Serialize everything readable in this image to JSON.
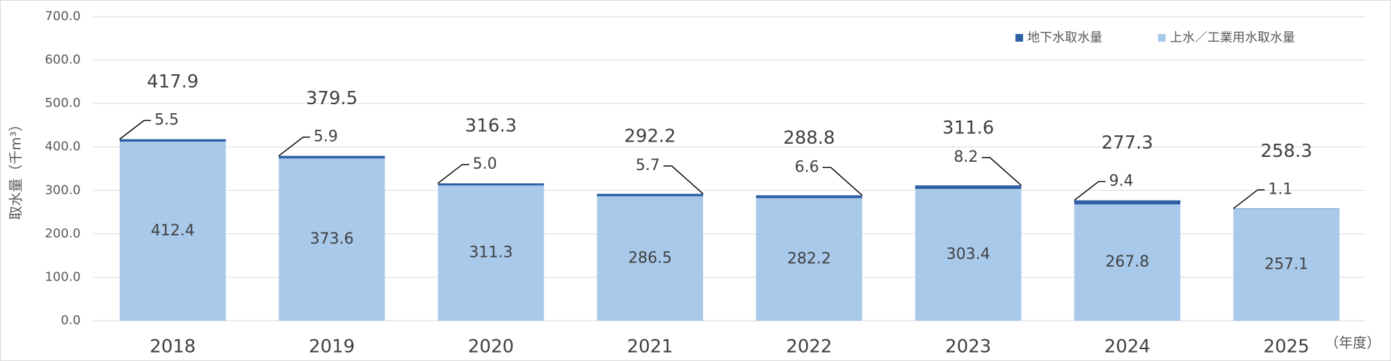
{
  "chart_data": {
    "type": "stacked-bar",
    "y_label": "取水量（千m³）",
    "x_unit": "（年度）",
    "categories": [
      "2018",
      "2019",
      "2020",
      "2021",
      "2022",
      "2023",
      "2024",
      "2025"
    ],
    "series": [
      {
        "name": "上水／工業用水取水量",
        "color": "#a9c9ea",
        "values": [
          412.4,
          373.6,
          311.3,
          286.5,
          282.2,
          303.4,
          267.8,
          257.1
        ]
      },
      {
        "name": "地下水取水量",
        "color": "#2e5fa3",
        "values": [
          5.5,
          5.9,
          5.0,
          5.7,
          6.6,
          8.2,
          9.4,
          1.1
        ],
        "value_labels": [
          "5.5",
          "5.9",
          "5.0",
          "5.7",
          "6.6",
          "8.2",
          "9.4",
          "1.1"
        ]
      }
    ],
    "totals": [
      417.9,
      379.5,
      316.3,
      292.2,
      288.8,
      311.6,
      277.3,
      258.3
    ],
    "ylim": [
      0,
      700
    ],
    "yticks": [
      {
        "value": 0,
        "label": "0.0"
      },
      {
        "value": 100,
        "label": "100.0"
      },
      {
        "value": 200,
        "label": "200.0"
      },
      {
        "value": 300,
        "label": "300.0"
      },
      {
        "value": 400,
        "label": "400.0"
      },
      {
        "value": 500,
        "label": "500.0"
      },
      {
        "value": 600,
        "label": "600.0"
      },
      {
        "value": 700,
        "label": "700.0"
      }
    ],
    "grid": true,
    "legend": "top-right"
  }
}
